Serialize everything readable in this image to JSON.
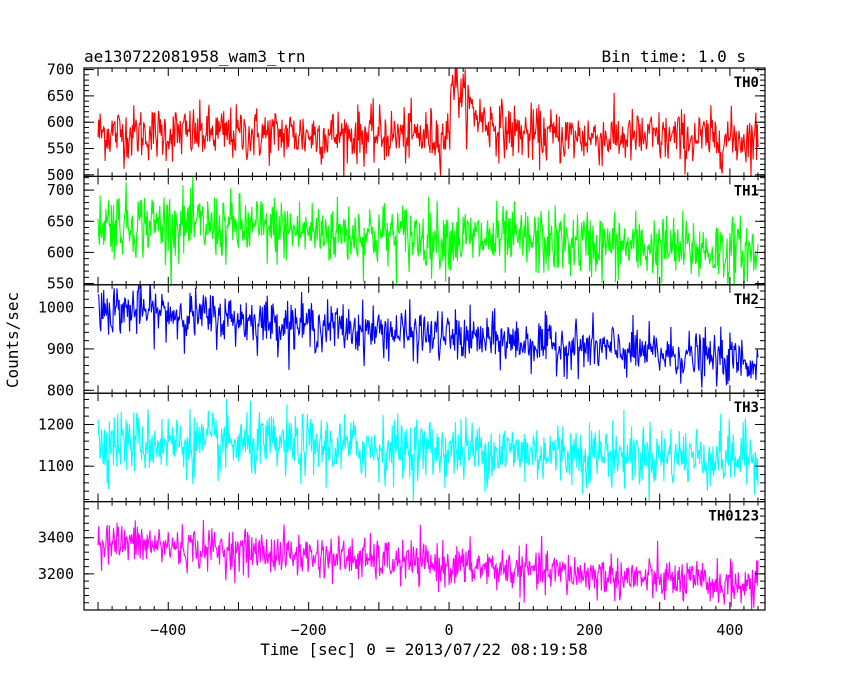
{
  "chart_data": {
    "type": "line",
    "title": "ae130722081958_wam3_trn",
    "subtitle": "Bin time: 1.0 s",
    "xlabel": "Time [sec] 0 = 2013/07/22 08:19:58",
    "ylabel": "Counts/sec",
    "xlim": [
      -520,
      450
    ],
    "x_data_range": [
      -500,
      440
    ],
    "bin_time_s": 1.0,
    "xticks": [
      -400,
      -200,
      0,
      200,
      400
    ],
    "xtick_labels": [
      "−400",
      "−200",
      "0",
      "200",
      "400"
    ],
    "grid": false,
    "panels": [
      {
        "name": "TH0",
        "color": "#ff0000",
        "ylim": [
          497,
          703
        ],
        "yticks": [
          500,
          550,
          600,
          650,
          700
        ],
        "ytick_labels": [
          "500",
          "550",
          "600",
          "650",
          "700"
        ],
        "trend_start": 580,
        "trend_end": 568,
        "noise": 26,
        "burst": {
          "x": 5,
          "peak": 705,
          "decay_s": 35
        }
      },
      {
        "name": "TH1",
        "color": "#00ff00",
        "ylim": [
          548,
          722
        ],
        "yticks": [
          550,
          600,
          650,
          700
        ],
        "ytick_labels": [
          "550",
          "600",
          "650",
          "700"
        ],
        "trend_start": 650,
        "trend_end": 600,
        "noise": 27
      },
      {
        "name": "TH2",
        "color": "#0000ff",
        "ylim": [
          793,
          1055
        ],
        "yticks": [
          800,
          900,
          1000
        ],
        "ytick_labels": [
          "800",
          "900",
          "1000"
        ],
        "trend_start": 1000,
        "trend_end": 868,
        "noise": 30
      },
      {
        "name": "TH3",
        "color": "#00ffff",
        "ylim": [
          1015,
          1275
        ],
        "yticks": [
          1100,
          1200
        ],
        "ytick_labels": [
          "1100",
          "1200"
        ],
        "trend_start": 1160,
        "trend_end": 1120,
        "noise": 38
      },
      {
        "name": "TH0123",
        "color": "#ff00ff",
        "ylim": [
          3000,
          3600
        ],
        "yticks": [
          3200,
          3400
        ],
        "ytick_labels": [
          "3200",
          "3400"
        ],
        "trend_start": 3380,
        "trend_end": 3130,
        "noise": 60
      }
    ]
  }
}
